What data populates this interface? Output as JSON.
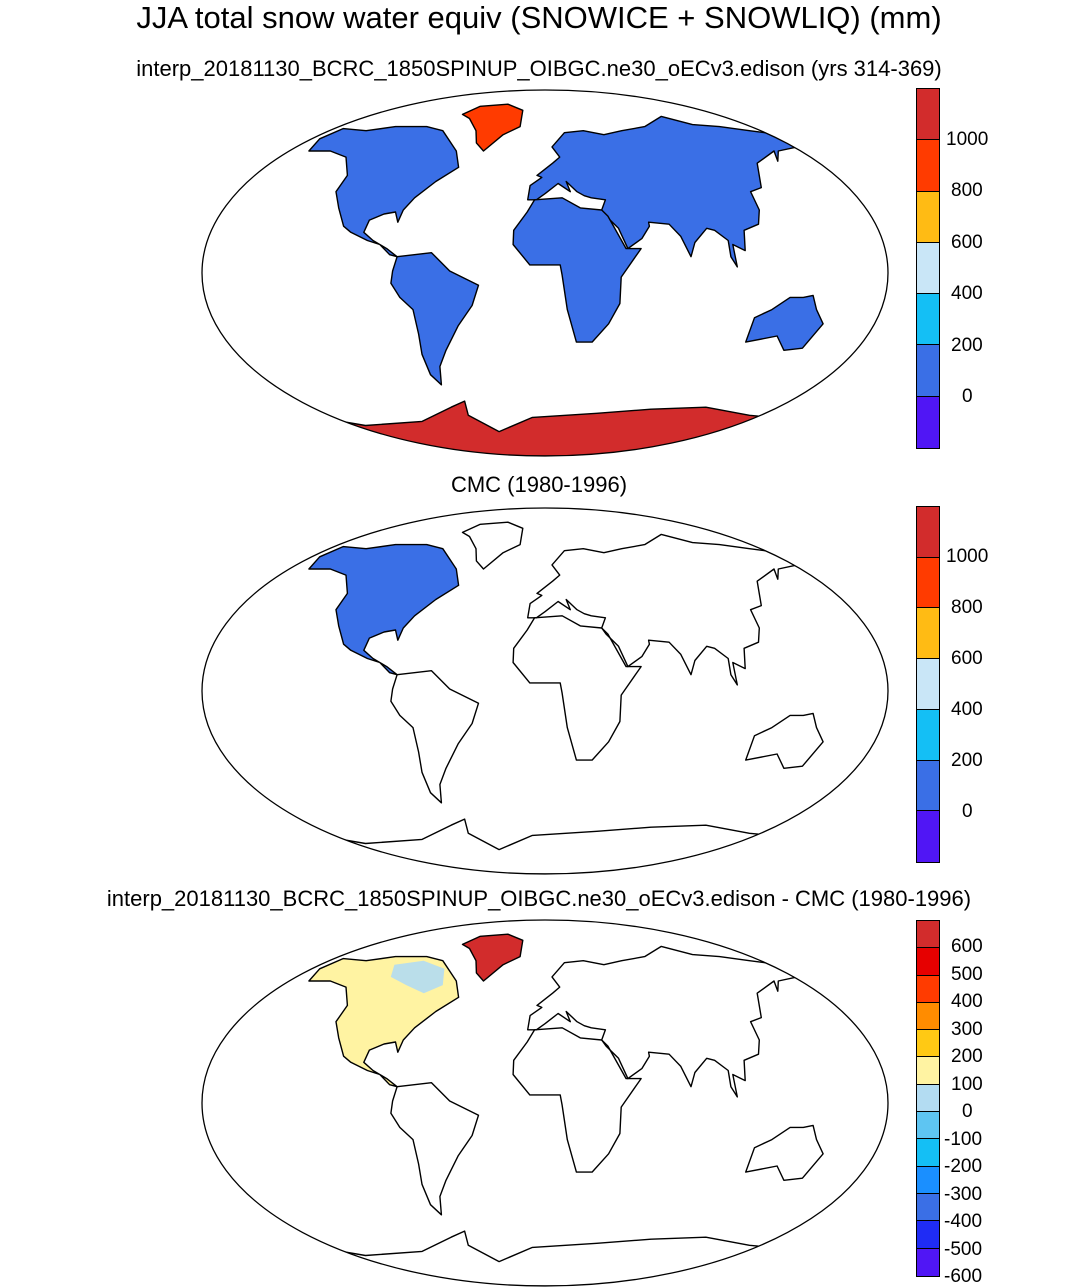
{
  "titles": {
    "main": "JJA total snow water equiv (SNOWICE + SNOWLIQ) (mm)",
    "panel1": "interp_20181130_BCRC_1850SPINUP_OIBGC.ne30_oECv3.edison (yrs 314-369)",
    "panel2": "CMC (1980-1996)",
    "panel3": "interp_20181130_BCRC_1850SPINUP_OIBGC.ne30_oECv3.edison - CMC (1980-1996)"
  },
  "colors": {
    "background": "#ffffff",
    "outline": "#000000",
    "model_land_fill": "#3a6fe6",
    "ice_sheet_fill": "#d22c2c",
    "greenland_fill": "#ff3b00",
    "cmc_fill": "#3a6fe6",
    "diff_positive": "#fff3a2",
    "diff_negative": "#b3dcf2",
    "diff_greenland": "#d22c2c"
  },
  "colorbar_abs": {
    "colors": [
      "#d22c2c",
      "#ff3b00",
      "#ffbb14",
      "#c9e6f7",
      "#14bff5",
      "#3a6fe6",
      "#5016f5"
    ],
    "labels": [
      "1000",
      "800",
      "600",
      "400",
      "200",
      "0"
    ]
  },
  "colorbar_diff": {
    "colors": [
      "#d22c2c",
      "#e60000",
      "#ff3b00",
      "#ff8c00",
      "#ffc914",
      "#fff3a2",
      "#b3dcf2",
      "#5ec5f2",
      "#14bff5",
      "#1a8fff",
      "#3a6fe6",
      "#1f2cf5",
      "#5016f5"
    ],
    "labels": [
      "600",
      "500",
      "400",
      "300",
      "200",
      "100",
      "0",
      "-100",
      "-200",
      "-300",
      "-400",
      "-500",
      "-600"
    ]
  }
}
